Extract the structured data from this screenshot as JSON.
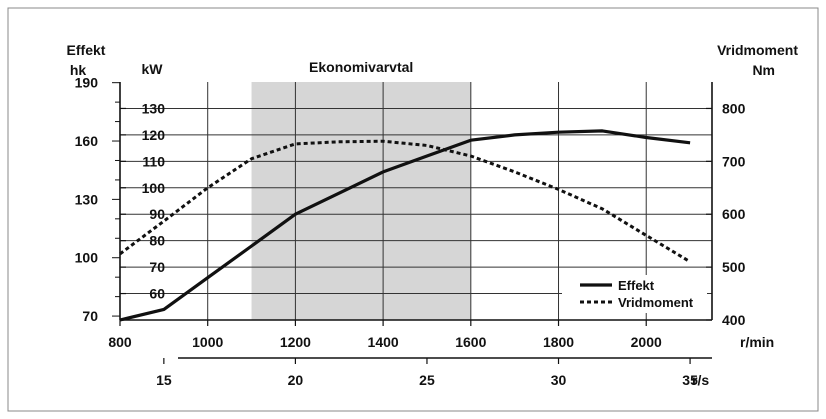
{
  "chart_data": {
    "type": "line",
    "title": "Ekonomivarvtal",
    "economy_band": [
      1100,
      1600
    ],
    "x": {
      "label": "r/min",
      "range": [
        800,
        2150
      ],
      "ticks": [
        800,
        1000,
        1200,
        1400,
        1600,
        1800,
        2000
      ]
    },
    "x2": {
      "label": "r/s",
      "ticks": [
        15,
        20,
        25,
        30,
        35
      ]
    },
    "y_left_kw": {
      "label": "kW",
      "range": [
        50,
        140
      ],
      "ticks": [
        60,
        70,
        80,
        90,
        100,
        110,
        120,
        130
      ]
    },
    "y_left_hp": {
      "label_top": "Effekt",
      "label_bottom": "hk",
      "ticks": [
        70,
        100,
        130,
        160,
        190
      ]
    },
    "y_right": {
      "label_top": "Vridmoment",
      "label_bottom": "Nm",
      "range": [
        400,
        850
      ],
      "ticks": [
        400,
        500,
        600,
        700,
        800
      ]
    },
    "grid": true,
    "legend_position": "bottom-right",
    "series": [
      {
        "name": "Effekt",
        "axis": "kW",
        "style": "solid",
        "x": [
          800,
          900,
          1000,
          1100,
          1200,
          1300,
          1400,
          1500,
          1600,
          1700,
          1800,
          1900,
          2000,
          2100
        ],
        "values": [
          50,
          54,
          66,
          78,
          90,
          98,
          106,
          112,
          118,
          120,
          121,
          121.5,
          119,
          117
        ]
      },
      {
        "name": "Vridmoment",
        "axis": "Nm",
        "style": "dotted",
        "x": [
          800,
          900,
          1000,
          1100,
          1200,
          1300,
          1400,
          1500,
          1600,
          1700,
          1800,
          1900,
          2000,
          2100
        ],
        "values": [
          525,
          587,
          650,
          705,
          733,
          737,
          738,
          730,
          710,
          680,
          647,
          610,
          560,
          510
        ]
      }
    ]
  }
}
